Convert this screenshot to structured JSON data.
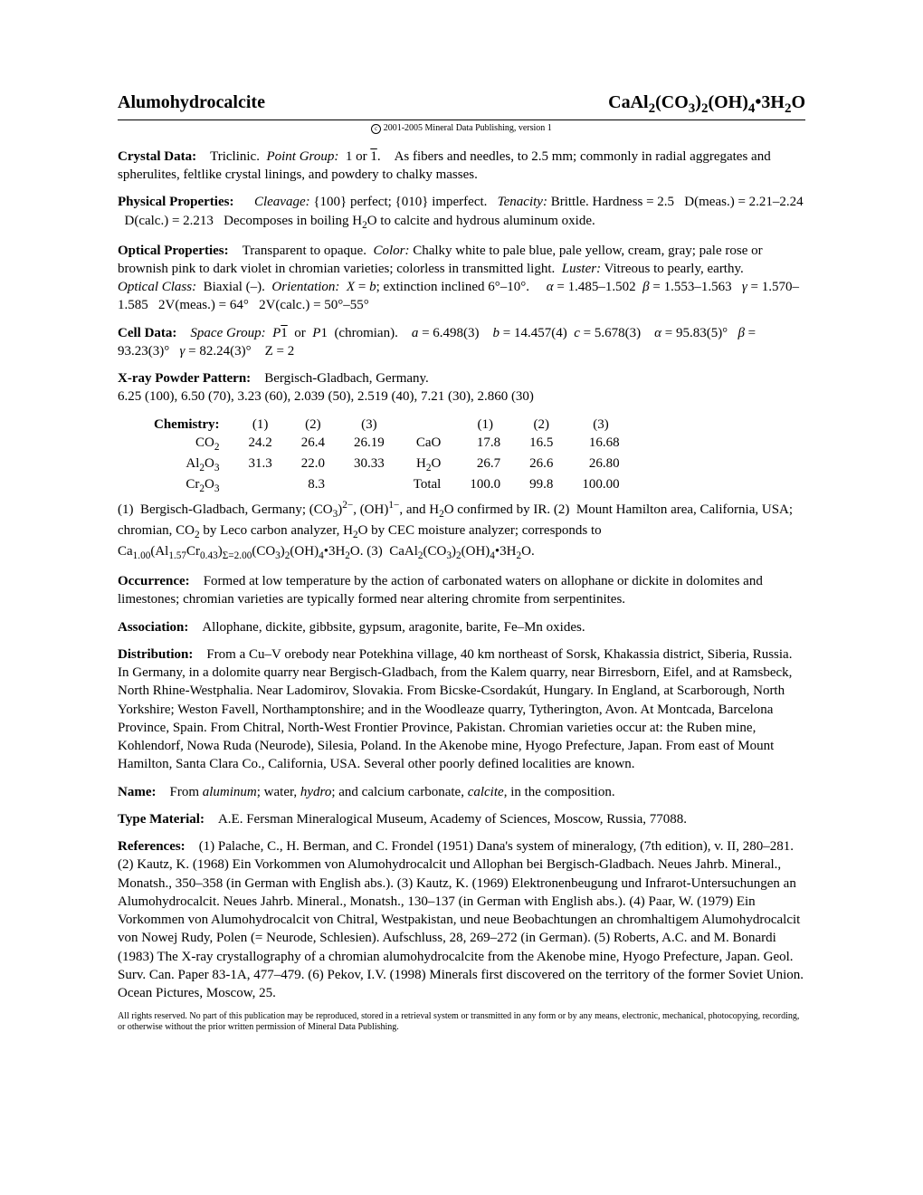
{
  "header": {
    "name": "Alumohydrocalcite",
    "formula_html": "CaAl<sub>2</sub>(CO<sub>3</sub>)<sub>2</sub>(OH)<sub>4</sub>&#8226;3H<sub>2</sub>O"
  },
  "copyright": "2001-2005 Mineral Data Publishing, version 1",
  "crystal_data": {
    "label": "Crystal Data:",
    "body_html": "Triclinic. &nbsp;<span class=\"ital\">Point Group:</span> &nbsp;1 or <span class=\"overline\">1</span>. &nbsp;&nbsp;&nbsp;As fibers and needles, to 2.5 mm; commonly in radial aggregates and spherulites, feltlike crystal linings, and powdery to chalky masses."
  },
  "physical": {
    "label": "Physical Properties:",
    "body_html": "<span class=\"ital\">Cleavage:</span> {100} perfect; {010} imperfect. &nbsp;&nbsp;<span class=\"ital\">Tenacity:</span> Brittle. Hardness = 2.5 &nbsp; D(meas.) = 2.21–2.24 &nbsp; D(calc.) = 2.213 &nbsp; Decomposes in boiling H<sub>2</sub>O to calcite and hydrous aluminum oxide."
  },
  "optical": {
    "label": "Optical Properties:",
    "body_html": "Transparent to opaque. &nbsp;<span class=\"ital\">Color:</span> Chalky white to pale blue, pale yellow, cream, gray; pale rose or brownish pink to dark violet in chromian varieties; colorless in transmitted light. &nbsp;<span class=\"ital\">Luster:</span> Vitreous to pearly, earthy.<br><span class=\"ital\">Optical Class:</span> &nbsp;Biaxial (–). &nbsp;<span class=\"ital\">Orientation:</span> &nbsp;<span class=\"ital\">X</span> = <span class=\"ital\">b</span>; extinction inclined 6°–10°. &nbsp;&nbsp;&nbsp; <span class=\"ital\">α</span> = 1.485–1.502 &nbsp;<span class=\"ital\">β</span> = 1.553–1.563 &nbsp; <span class=\"ital\">γ</span> = 1.570–1.585 &nbsp; 2V(meas.) = 64° &nbsp; 2V(calc.) = 50°–55°"
  },
  "cell": {
    "label": "Cell Data:",
    "body_html": "<span class=\"ital\">Space Group:</span> &nbsp;<span class=\"ital\">P</span><span class=\"overline\">1</span> &nbsp;or &nbsp;<span class=\"ital\">P</span>1 &nbsp;(chromian). &nbsp;&nbsp;&nbsp;<span class=\"ital\">a</span> = 6.498(3) &nbsp;&nbsp;&nbsp;<span class=\"ital\">b</span> = 14.457(4) &nbsp;<span class=\"ital\">c</span> = 5.678(3) &nbsp;&nbsp;&nbsp;<span class=\"ital\">α</span> = 95.83(5)° &nbsp;&nbsp;<span class=\"ital\">β</span> = 93.23(3)° &nbsp;&nbsp;<span class=\"ital\">γ</span> = 82.24(3)° &nbsp;&nbsp;&nbsp;Z = 2"
  },
  "xray": {
    "label": "X-ray Powder Pattern:",
    "body_html": "Bergisch-Gladbach, Germany.<br>6.25 (100), 6.50 (70), 3.23 (60), 2.039 (50), 2.519 (40), 7.21 (30), 2.860 (30)"
  },
  "chemistry": {
    "label": "Chemistry:",
    "cols": [
      "(1)",
      "(2)",
      "(3)",
      "",
      "(1)",
      "(2)",
      "(3)"
    ],
    "rows": [
      {
        "lbl_html": "CO<sub>2</sub>",
        "c": [
          "24.2",
          "26.4",
          "26.19",
          "CaO",
          "17.8",
          "16.5",
          "16.68"
        ]
      },
      {
        "lbl_html": "Al<sub>2</sub>O<sub>3</sub>",
        "c": [
          "31.3",
          "22.0",
          "30.33",
          "H<sub>2</sub>O",
          "26.7",
          "26.6",
          "26.80"
        ]
      },
      {
        "lbl_html": "Cr<sub>2</sub>O<sub>3</sub>",
        "c": [
          "",
          "8.3",
          "",
          "Total",
          "100.0",
          "99.8",
          "100.00"
        ]
      }
    ],
    "notes_html": "(1) &nbsp;Bergisch-Gladbach, Germany; (CO<sub>3</sub>)<sup>2−</sup>, (OH)<sup>1−</sup>, and H<sub>2</sub>O confirmed by IR. (2) &nbsp;Mount Hamilton area, California, USA; chromian, CO<sub>2</sub> by Leco carbon analyzer, H<sub>2</sub>O by CEC moisture analyzer; corresponds to Ca<sub>1.00</sub>(Al<sub>1.57</sub>Cr<sub>0.43</sub>)<sub>Σ=2.00</sub>(CO<sub>3</sub>)<sub>2</sub>(OH)<sub>4</sub>&#8226;3H<sub>2</sub>O. (3) &nbsp;CaAl<sub>2</sub>(CO<sub>3</sub>)<sub>2</sub>(OH)<sub>4</sub>&#8226;3H<sub>2</sub>O."
  },
  "occurrence": {
    "label": "Occurrence:",
    "body": "Formed at low temperature by the action of carbonated waters on allophane or dickite in dolomites and limestones; chromian varieties are typically formed near altering chromite from serpentinites."
  },
  "association": {
    "label": "Association:",
    "body": "Allophane, dickite, gibbsite, gypsum, aragonite, barite, Fe–Mn oxides."
  },
  "distribution": {
    "label": "Distribution:",
    "body": "From a Cu–V orebody near Potekhina village, 40 km northeast of Sorsk, Khakassia district, Siberia, Russia. In Germany, in a dolomite quarry near Bergisch-Gladbach, from the Kalem quarry, near Birresborn, Eifel, and at Ramsbeck, North Rhine-Westphalia. Near Ladomirov, Slovakia. From Bicske-Csordakút, Hungary. In England, at Scarborough, North Yorkshire; Weston Favell, Northamptonshire; and in the Woodleaze quarry, Tytherington, Avon. At Montcada, Barcelona Province, Spain. From Chitral, North-West Frontier Province, Pakistan. Chromian varieties occur at: the Ruben mine, Kohlendorf, Nowa Ruda (Neurode), Silesia, Poland. In the Akenobe mine, Hyogo Prefecture, Japan. From east of Mount Hamilton, Santa Clara Co., California, USA. Several other poorly defined localities are known."
  },
  "name": {
    "label": "Name:",
    "body_html": "From <span class=\"ital\">aluminum</span>; water, <span class=\"ital\">hydro</span>; and calcium carbonate, <span class=\"ital\">calcite</span>, in the composition."
  },
  "type_material": {
    "label": "Type Material:",
    "body": "A.E. Fersman Mineralogical Museum, Academy of Sciences, Moscow, Russia, 77088."
  },
  "references": {
    "label": "References:",
    "body": "(1) Palache, C., H. Berman, and C. Frondel (1951) Dana's system of mineralogy, (7th edition), v. II, 280–281. (2) Kautz, K. (1968) Ein Vorkommen von Alumohydrocalcit und Allophan bei Bergisch-Gladbach. Neues Jahrb. Mineral., Monatsh., 350–358 (in German with English abs.). (3) Kautz, K. (1969) Elektronenbeugung und Infrarot-Untersuchungen an Alumohydrocalcit. Neues Jahrb. Mineral., Monatsh., 130–137 (in German with English abs.). (4) Paar, W. (1979) Ein Vorkommen von Alumohydrocalcit von Chitral, Westpakistan, und neue Beobachtungen an chromhaltigem Alumohydrocalcit von Nowej Rudy, Polen (= Neurode, Schlesien). Aufschluss, 28, 269–272 (in German). (5) Roberts, A.C. and M. Bonardi (1983) The X-ray crystallography of a chromian alumohydrocalcite from the Akenobe mine, Hyogo Prefecture, Japan. Geol. Surv. Can. Paper 83-1A, 477–479. (6) Pekov, I.V. (1998) Minerals first discovered on the territory of the former Soviet Union. Ocean Pictures, Moscow, 25."
  },
  "footer": "All rights reserved. No part of this publication may be reproduced, stored in a retrieval system or transmitted in any form or by any means, electronic, mechanical, photocopying, recording, or otherwise without the prior written permission of Mineral Data Publishing."
}
